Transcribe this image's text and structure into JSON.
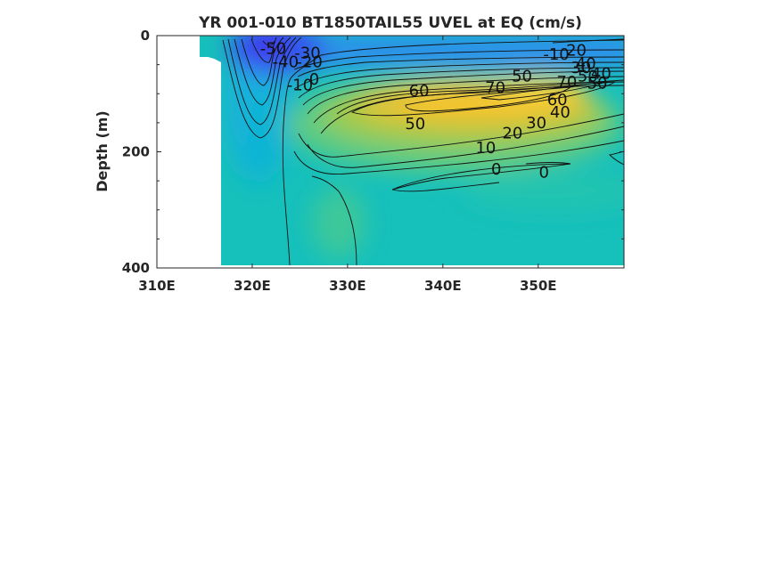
{
  "chart_data": {
    "type": "heatmap",
    "title": "YR 001-010 BT1850TAIL55 UVEL at EQ (cm/s)",
    "xlabel": "",
    "ylabel": "Depth (m)",
    "xlim": [
      310,
      359
    ],
    "ylim": [
      0,
      400
    ],
    "y_reversed": true,
    "x_ticks": [
      310,
      320,
      330,
      340,
      350
    ],
    "x_tick_labels": [
      "310E",
      "320E",
      "330E",
      "340E",
      "350E"
    ],
    "y_ticks": [
      0,
      200,
      400
    ],
    "y_tick_labels": [
      "0",
      "200",
      "400"
    ],
    "contour_levels": [
      -50,
      -40,
      -30,
      -20,
      -10,
      0,
      10,
      20,
      30,
      40,
      50,
      60,
      70
    ],
    "colormap": [
      "#3a3df0",
      "#2f80f0",
      "#1ea5e0",
      "#12bcc9",
      "#18c4b6",
      "#4cc98e",
      "#9ccb4e",
      "#e4c233",
      "#f9c62a",
      "#f7d838"
    ],
    "contour_labels": [
      {
        "text": "-50",
        "x": 322.2,
        "y": 22
      },
      {
        "text": "-40",
        "x": 323.5,
        "y": 45
      },
      {
        "text": "-30",
        "x": 325.8,
        "y": 30
      },
      {
        "text": "-20",
        "x": 326,
        "y": 45
      },
      {
        "text": "-10",
        "x": 325,
        "y": 85
      },
      {
        "text": "0",
        "x": 326.5,
        "y": 75
      },
      {
        "text": "60",
        "x": 337.5,
        "y": 95
      },
      {
        "text": "70",
        "x": 345.5,
        "y": 90
      },
      {
        "text": "50",
        "x": 348.3,
        "y": 70
      },
      {
        "text": "50",
        "x": 337.1,
        "y": 152
      },
      {
        "text": "10",
        "x": 344.5,
        "y": 193
      },
      {
        "text": "20",
        "x": 347.3,
        "y": 168
      },
      {
        "text": "30",
        "x": 349.8,
        "y": 150
      },
      {
        "text": "40",
        "x": 352.3,
        "y": 132
      },
      {
        "text": "60",
        "x": 352,
        "y": 110
      },
      {
        "text": "70",
        "x": 353,
        "y": 80
      },
      {
        "text": "0",
        "x": 345.6,
        "y": 230
      },
      {
        "text": "0",
        "x": 350.6,
        "y": 235
      },
      {
        "text": "-10",
        "x": 351.9,
        "y": 32
      },
      {
        "text": "20",
        "x": 354,
        "y": 25
      },
      {
        "text": "30",
        "x": 354.5,
        "y": 55
      },
      {
        "text": "40",
        "x": 355,
        "y": 48
      },
      {
        "text": "50",
        "x": 355.2,
        "y": 70
      },
      {
        "text": "40",
        "x": 356.6,
        "y": 65
      },
      {
        "text": "50",
        "x": 356.2,
        "y": 82
      }
    ]
  }
}
